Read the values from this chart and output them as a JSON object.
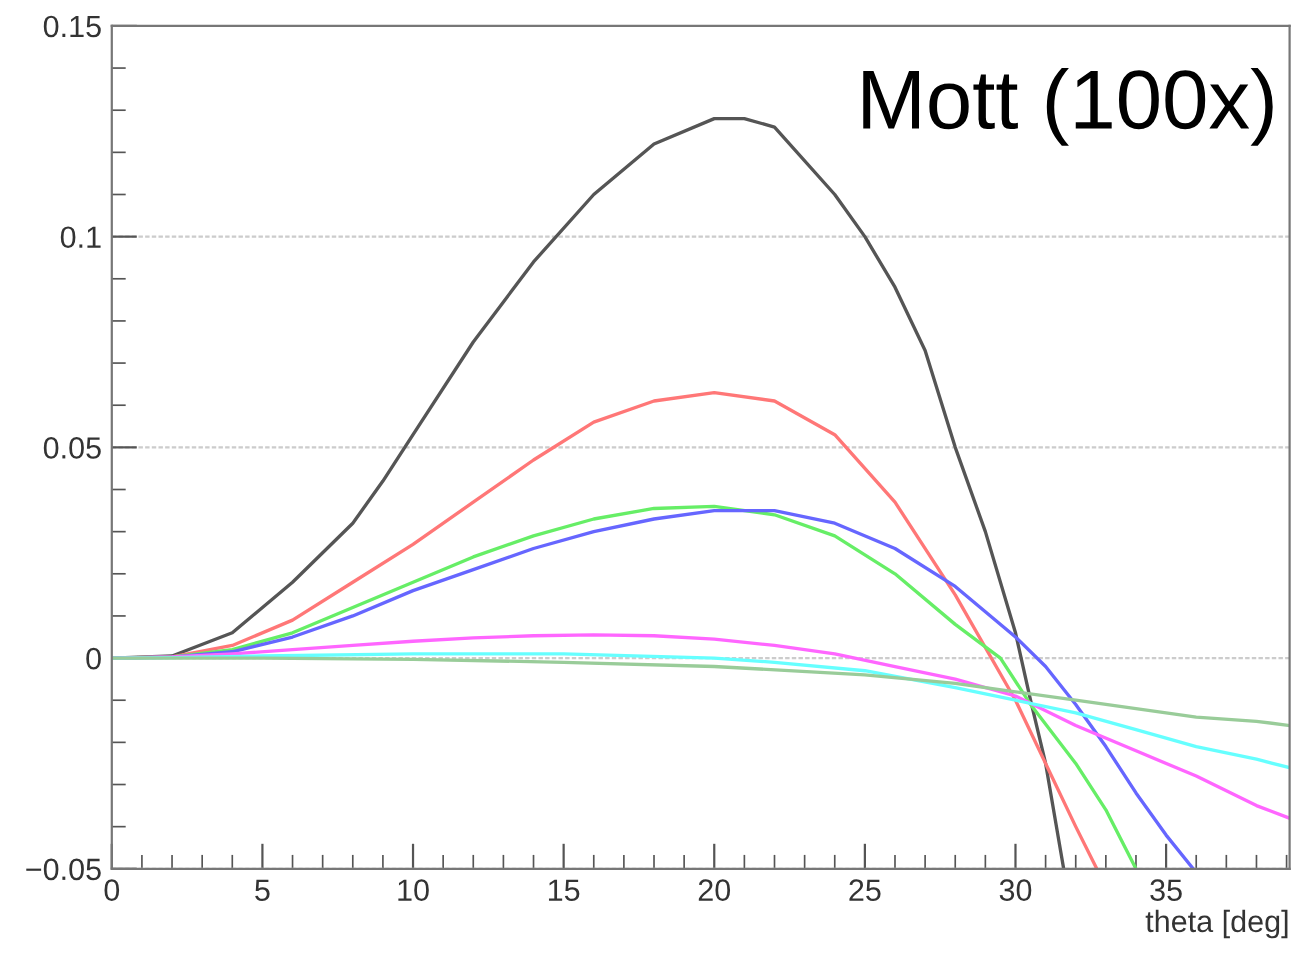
{
  "chart_data": {
    "type": "line",
    "xlabel": "theta [deg]",
    "annotations": [
      "Mott (100x)"
    ],
    "xlim": [
      0,
      39.1
    ],
    "ylim": [
      -0.05,
      0.15
    ],
    "xticks": [
      0,
      5,
      10,
      15,
      20,
      25,
      30,
      35
    ],
    "yticks": [
      {
        "value": -0.05,
        "label": "−0.05"
      },
      0,
      0.05,
      0.1,
      0.15
    ],
    "grid": "y",
    "line_style": "solid",
    "marker": "none",
    "series": [
      {
        "color": "#555555",
        "x": [
          0,
          2,
          4,
          6,
          8,
          9,
          10,
          12,
          14,
          16,
          18,
          20,
          21,
          22,
          24,
          25,
          26,
          27,
          28,
          29,
          30,
          30.5,
          31,
          31.6
        ],
        "values": [
          0,
          0.0005,
          0.006,
          0.018,
          0.032,
          0.042,
          0.053,
          0.075,
          0.094,
          0.11,
          0.122,
          0.128,
          0.128,
          0.126,
          0.11,
          0.1,
          0.088,
          0.073,
          0.05,
          0.03,
          0.006,
          -0.01,
          -0.025,
          -0.05
        ]
      },
      {
        "color": "#ff7777",
        "x": [
          0,
          2,
          4,
          6,
          8,
          10,
          12,
          14,
          16,
          18,
          20,
          22,
          24,
          26,
          28,
          30,
          31,
          32,
          32.7
        ],
        "values": [
          0,
          0.0003,
          0.003,
          0.009,
          0.018,
          0.027,
          0.037,
          0.047,
          0.056,
          0.061,
          0.063,
          0.061,
          0.053,
          0.037,
          0.015,
          -0.01,
          -0.025,
          -0.04,
          -0.05
        ]
      },
      {
        "color": "#66ee66",
        "x": [
          0,
          2,
          4,
          6,
          8,
          10,
          12,
          14,
          16,
          18,
          20,
          22,
          24,
          26,
          28,
          29.5,
          30.5,
          32,
          33,
          34
        ],
        "values": [
          0,
          0.0003,
          0.002,
          0.006,
          0.012,
          0.018,
          0.024,
          0.029,
          0.033,
          0.0355,
          0.036,
          0.034,
          0.029,
          0.02,
          0.008,
          0,
          -0.011,
          -0.025,
          -0.036,
          -0.05
        ]
      },
      {
        "color": "#6666ff",
        "x": [
          0,
          2,
          4,
          6,
          8,
          10,
          12,
          14,
          16,
          18,
          20,
          22,
          24,
          26,
          28,
          30,
          31,
          32,
          33,
          34,
          35,
          35.9
        ],
        "values": [
          0,
          0.0002,
          0.0015,
          0.005,
          0.01,
          0.016,
          0.021,
          0.026,
          0.03,
          0.033,
          0.035,
          0.035,
          0.032,
          0.026,
          0.017,
          0.005,
          -0.002,
          -0.011,
          -0.021,
          -0.032,
          -0.042,
          -0.05
        ]
      },
      {
        "color": "#ff66ff",
        "x": [
          0,
          2,
          4,
          6,
          8,
          10,
          12,
          14,
          16,
          18,
          20,
          22,
          24,
          26,
          28,
          30,
          32,
          34,
          36,
          38,
          39.1
        ],
        "values": [
          0,
          0.0003,
          0.001,
          0.002,
          0.003,
          0.004,
          0.0048,
          0.0053,
          0.0055,
          0.0053,
          0.0045,
          0.003,
          0.001,
          -0.002,
          -0.005,
          -0.009,
          -0.016,
          -0.022,
          -0.028,
          -0.035,
          -0.038
        ]
      },
      {
        "color": "#66ffff",
        "x": [
          0,
          2,
          5,
          10,
          15,
          20,
          22,
          25,
          28,
          30,
          32,
          34,
          36,
          38,
          39.1
        ],
        "values": [
          0,
          0.0001,
          0.0005,
          0.001,
          0.001,
          0,
          -0.001,
          -0.003,
          -0.007,
          -0.01,
          -0.013,
          -0.017,
          -0.021,
          -0.024,
          -0.026
        ]
      },
      {
        "color": "#99cc99",
        "x": [
          0,
          5,
          10,
          15,
          20,
          25,
          28,
          30,
          32,
          34,
          36,
          38,
          39.1
        ],
        "values": [
          0,
          0,
          -0.0003,
          -0.001,
          -0.002,
          -0.004,
          -0.006,
          -0.008,
          -0.01,
          -0.012,
          -0.014,
          -0.015,
          -0.016
        ]
      }
    ]
  }
}
